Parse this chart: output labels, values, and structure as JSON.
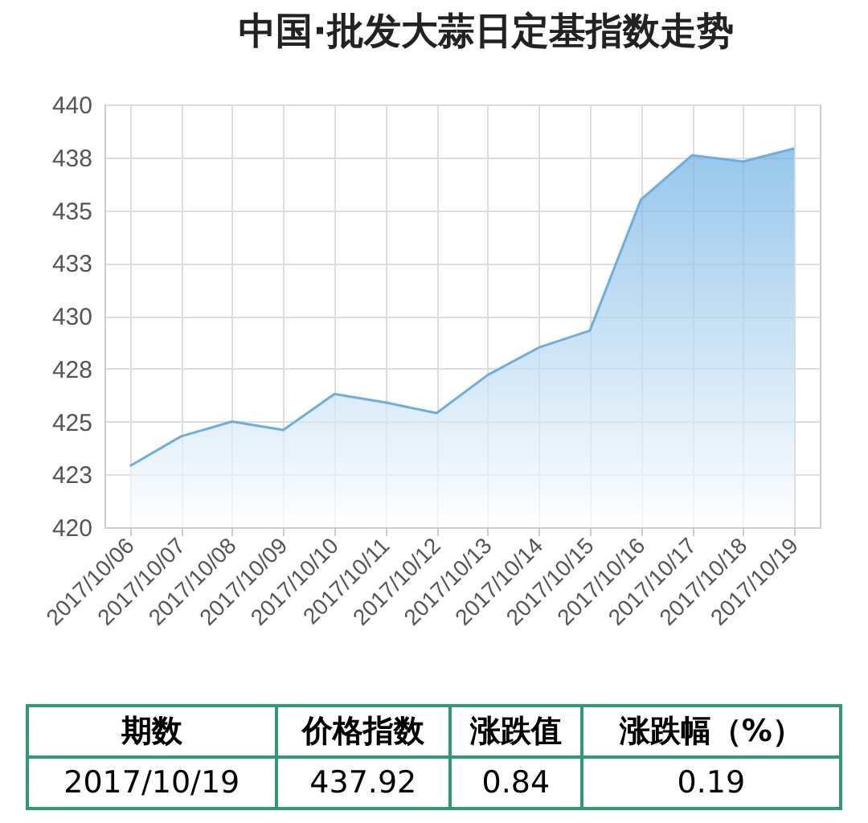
{
  "chart_data": {
    "type": "area",
    "title": "中国·批发大蒜日定基指数走势",
    "categories": [
      "2017/10/06",
      "2017/10/07",
      "2017/10/08",
      "2017/10/09",
      "2017/10/10",
      "2017/10/11",
      "2017/10/12",
      "2017/10/13",
      "2017/10/14",
      "2017/10/15",
      "2017/10/16",
      "2017/10/17",
      "2017/10/18",
      "2017/10/19"
    ],
    "series": [
      {
        "color": "#6aaee3",
        "values": [
          422.9,
          424.3,
          425.0,
          424.6,
          426.3,
          425.9,
          425.4,
          427.2,
          428.5,
          429.3,
          435.5,
          437.6,
          437.3,
          437.92
        ]
      }
    ],
    "ylim": [
      420,
      440
    ],
    "yticks": [
      420,
      {
        "value": 422.5,
        "label": "423"
      },
      425,
      {
        "value": 427.5,
        "label": "428"
      },
      430,
      {
        "value": 432.5,
        "label": "433"
      },
      435,
      {
        "value": 437.5,
        "label": "438"
      },
      440
    ],
    "grid": true,
    "annotations": [
      "期数",
      "价格指数",
      "涨跌值",
      "涨跌幅（%）",
      "2017/10/19",
      "437.92",
      "0.84",
      "0.19"
    ]
  }
}
